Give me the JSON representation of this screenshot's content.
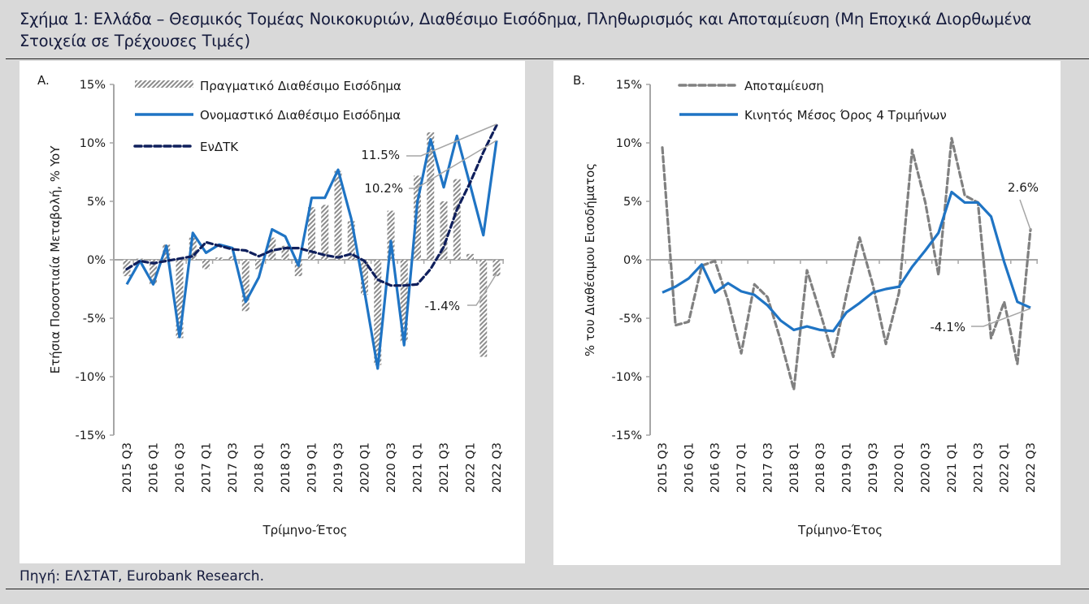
{
  "title": "Σχήμα 1: Ελλάδα – Θεσμικός Τομέας Νοικοκυριών, Διαθέσιμο Εισόδημα, Πληθωρισμός και Αποταμίευση (Μη Εποχικά Διορθωμένα Στοιχεία σε Τρέχουσες Τιμές)",
  "source": "Πηγή: ΕΛΣΤΑΤ, Eurobank Research.",
  "colors": {
    "blue": "#1f74c4",
    "navy": "#0f1f5c",
    "gray": "#808080",
    "axis": "#a6a6a6"
  },
  "chart_data": [
    {
      "panel_label": "A.",
      "type": "bar+line",
      "xlabel": "Τρίμηνο-Έτος",
      "ylabel": "Ετήσια Ποσοστιαία Μεταβολή, % YoY",
      "ylim": [
        -15,
        15
      ],
      "yticks": [
        "-15%",
        "-10%",
        "-5%",
        "0%",
        "5%",
        "10%",
        "15%"
      ],
      "categories": [
        "2015 Q3",
        "2015 Q4",
        "2016 Q1",
        "2016 Q2",
        "2016 Q3",
        "2016 Q4",
        "2017 Q1",
        "2017 Q2",
        "2017 Q3",
        "2017 Q4",
        "2018 Q1",
        "2018 Q2",
        "2018 Q3",
        "2018 Q4",
        "2019 Q1",
        "2019 Q2",
        "2019 Q3",
        "2019 Q4",
        "2020 Q1",
        "2020 Q2",
        "2020 Q3",
        "2020 Q4",
        "2021 Q1",
        "2021 Q2",
        "2021 Q3",
        "2021 Q4",
        "2022 Q1",
        "2022 Q2",
        "2022 Q3"
      ],
      "xtick_labels": [
        "2015 Q3",
        "2016 Q1",
        "2016 Q3",
        "2017 Q1",
        "2017 Q3",
        "2018 Q1",
        "2018 Q3",
        "2019 Q1",
        "2019 Q3",
        "2020 Q1",
        "2020 Q3",
        "2021 Q1",
        "2021 Q3",
        "2022 Q1",
        "2022 Q3"
      ],
      "series": [
        {
          "name": "Πραγματικό Διαθέσιμο Εισόδημα",
          "style": "hatched-bar",
          "values": [
            -1.4,
            0.1,
            -2.1,
            1.3,
            -6.7,
            1.9,
            -0.8,
            0.2,
            0.3,
            -4.4,
            -0.8,
            1.9,
            1.2,
            -1.4,
            4.5,
            4.7,
            7.6,
            3.3,
            -3.0,
            -9.0,
            4.2,
            -7.0,
            7.2,
            10.9,
            5.0,
            6.9,
            0.5,
            -8.3,
            -1.4
          ]
        },
        {
          "name": "Ονομαστικό Διαθέσιμο Εισόδημα",
          "style": "solid-line",
          "values": [
            -2.1,
            -0.1,
            -2.1,
            1.2,
            -6.6,
            2.3,
            0.6,
            1.3,
            1.0,
            -3.6,
            -1.5,
            2.6,
            2.0,
            -0.5,
            5.3,
            5.3,
            7.7,
            3.5,
            -2.7,
            -9.3,
            1.6,
            -7.3,
            4.9,
            10.3,
            6.2,
            10.6,
            6.4,
            2.1,
            10.2
          ]
        },
        {
          "name": "ΕνΔΤΚ",
          "style": "dashed-line",
          "values": [
            -0.8,
            -0.1,
            -0.3,
            -0.1,
            0.1,
            0.3,
            1.5,
            1.2,
            0.9,
            0.8,
            0.3,
            0.8,
            1.0,
            1.0,
            0.7,
            0.4,
            0.2,
            0.5,
            -0.1,
            -1.7,
            -2.2,
            -2.2,
            -2.1,
            -0.8,
            1.1,
            4.3,
            6.6,
            9.2,
            11.5
          ]
        }
      ],
      "annotations": [
        "11.5%",
        "10.2%",
        "-1.4%"
      ],
      "legend": "top-left"
    },
    {
      "panel_label": "B.",
      "type": "line",
      "xlabel": "Τρίμηνο-Έτος",
      "ylabel": "% του Διαθέσιμου Εισοδήματος",
      "ylim": [
        -15,
        15
      ],
      "yticks": [
        "-15%",
        "-10%",
        "-5%",
        "0%",
        "5%",
        "10%",
        "15%"
      ],
      "categories": [
        "2015 Q3",
        "2015 Q4",
        "2016 Q1",
        "2016 Q2",
        "2016 Q3",
        "2016 Q4",
        "2017 Q1",
        "2017 Q2",
        "2017 Q3",
        "2017 Q4",
        "2018 Q1",
        "2018 Q2",
        "2018 Q3",
        "2018 Q4",
        "2019 Q1",
        "2019 Q2",
        "2019 Q3",
        "2019 Q4",
        "2020 Q1",
        "2020 Q2",
        "2020 Q3",
        "2020 Q4",
        "2021 Q1",
        "2021 Q2",
        "2021 Q3",
        "2021 Q4",
        "2022 Q1",
        "2022 Q2",
        "2022 Q3"
      ],
      "xtick_labels": [
        "2015 Q3",
        "2016 Q1",
        "2016 Q3",
        "2017 Q1",
        "2017 Q3",
        "2018 Q1",
        "2018 Q3",
        "2019 Q1",
        "2019 Q3",
        "2020 Q1",
        "2020 Q3",
        "2021 Q1",
        "2021 Q3",
        "2022 Q1",
        "2022 Q3"
      ],
      "series": [
        {
          "name": "Αποταμίευση",
          "style": "dashed-line",
          "values": [
            9.6,
            -5.6,
            -5.3,
            -0.5,
            -0.1,
            -3.5,
            -8.0,
            -2.1,
            -3.2,
            -6.9,
            -11.1,
            -0.9,
            -4.5,
            -8.3,
            -3.0,
            1.9,
            -2.1,
            -7.2,
            -2.8,
            9.4,
            4.9,
            -1.3,
            10.4,
            5.5,
            4.9,
            -6.7,
            -3.6,
            -8.9,
            2.6
          ]
        },
        {
          "name": "Κινητός Μέσος Όρος 4 Τριμήνων",
          "style": "solid-line",
          "values": [
            -2.8,
            -2.3,
            -1.6,
            -0.4,
            -2.8,
            -2.0,
            -2.7,
            -3.0,
            -3.9,
            -5.2,
            -6.0,
            -5.7,
            -6.0,
            -6.1,
            -4.5,
            -3.7,
            -2.8,
            -2.5,
            -2.3,
            -0.6,
            0.8,
            2.3,
            5.8,
            4.9,
            4.9,
            3.7,
            -0.2,
            -3.6,
            -4.1
          ]
        }
      ],
      "annotations": [
        "2.6%",
        "-4.1%"
      ],
      "legend": "top-left"
    }
  ]
}
